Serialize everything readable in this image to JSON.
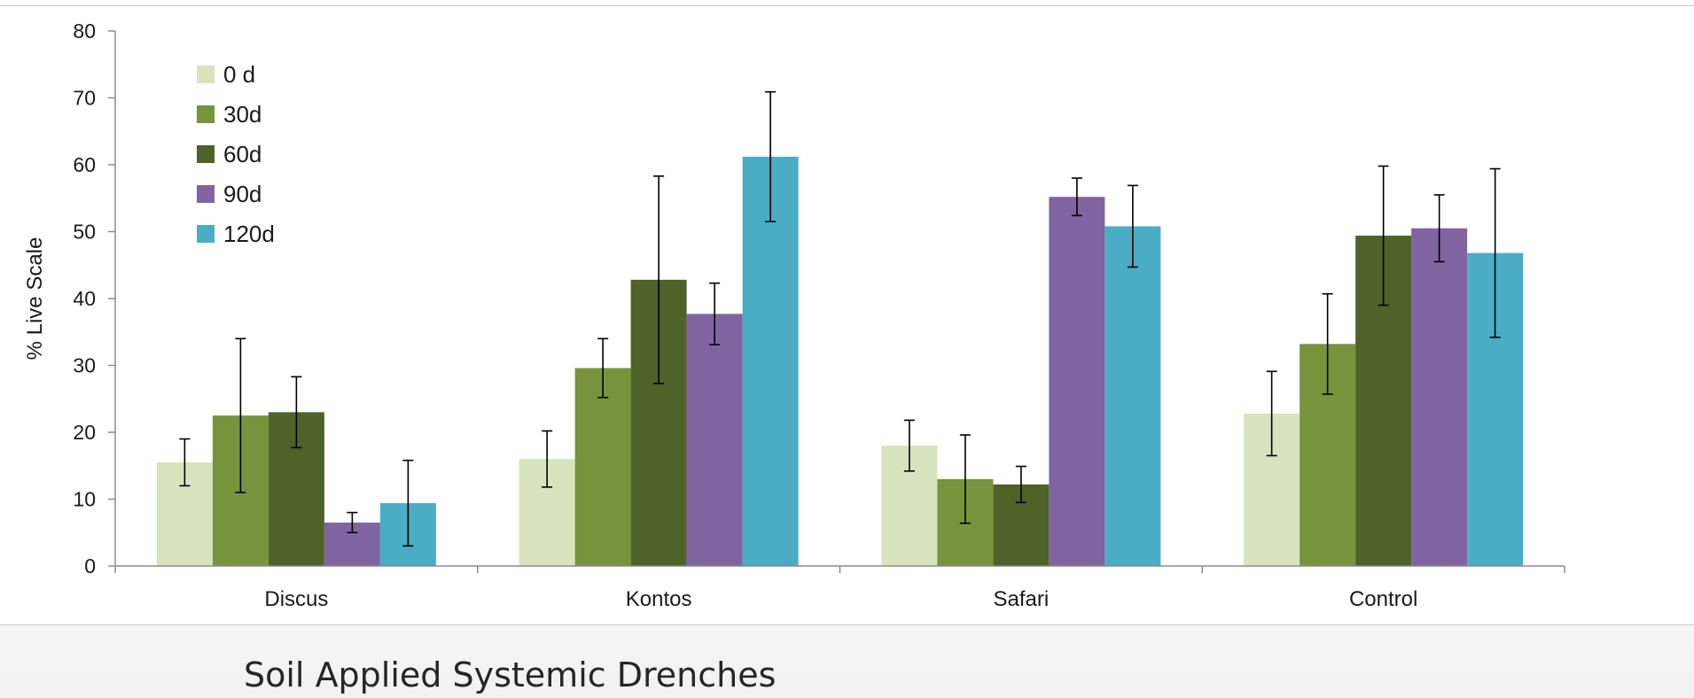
{
  "chart_data": {
    "type": "bar",
    "title": "",
    "xlabel": "",
    "ylabel": "% Live Scale",
    "ylim": [
      0,
      80
    ],
    "yticks": [
      0,
      10,
      20,
      30,
      40,
      50,
      60,
      70,
      80
    ],
    "categories": [
      "Discus",
      "Kontos",
      "Safari",
      "Control"
    ],
    "legend_position": "top-left",
    "grid": false,
    "error_bars": true,
    "series": [
      {
        "name": "0 d",
        "color": "#d7e4bd",
        "values": [
          15.5,
          16.0,
          18.0,
          22.8
        ],
        "errors": [
          3.5,
          4.2,
          3.8,
          6.3
        ]
      },
      {
        "name": "30d",
        "color": "#77933c",
        "values": [
          22.5,
          29.6,
          13.0,
          33.2
        ],
        "errors": [
          11.5,
          4.4,
          6.6,
          7.5
        ]
      },
      {
        "name": "60d",
        "color": "#4f6228",
        "values": [
          23.0,
          42.8,
          12.2,
          49.4
        ],
        "errors": [
          5.3,
          15.5,
          2.7,
          10.4
        ]
      },
      {
        "name": "90d",
        "color": "#8064a2",
        "values": [
          6.5,
          37.7,
          55.2,
          50.5
        ],
        "errors": [
          1.5,
          4.6,
          2.8,
          5.0
        ]
      },
      {
        "name": "120d",
        "color": "#4bacc6",
        "values": [
          9.4,
          61.2,
          50.8,
          46.8
        ],
        "errors": [
          6.4,
          9.7,
          6.1,
          12.6
        ]
      }
    ]
  },
  "caption": "Soil Applied Systemic Drenches"
}
